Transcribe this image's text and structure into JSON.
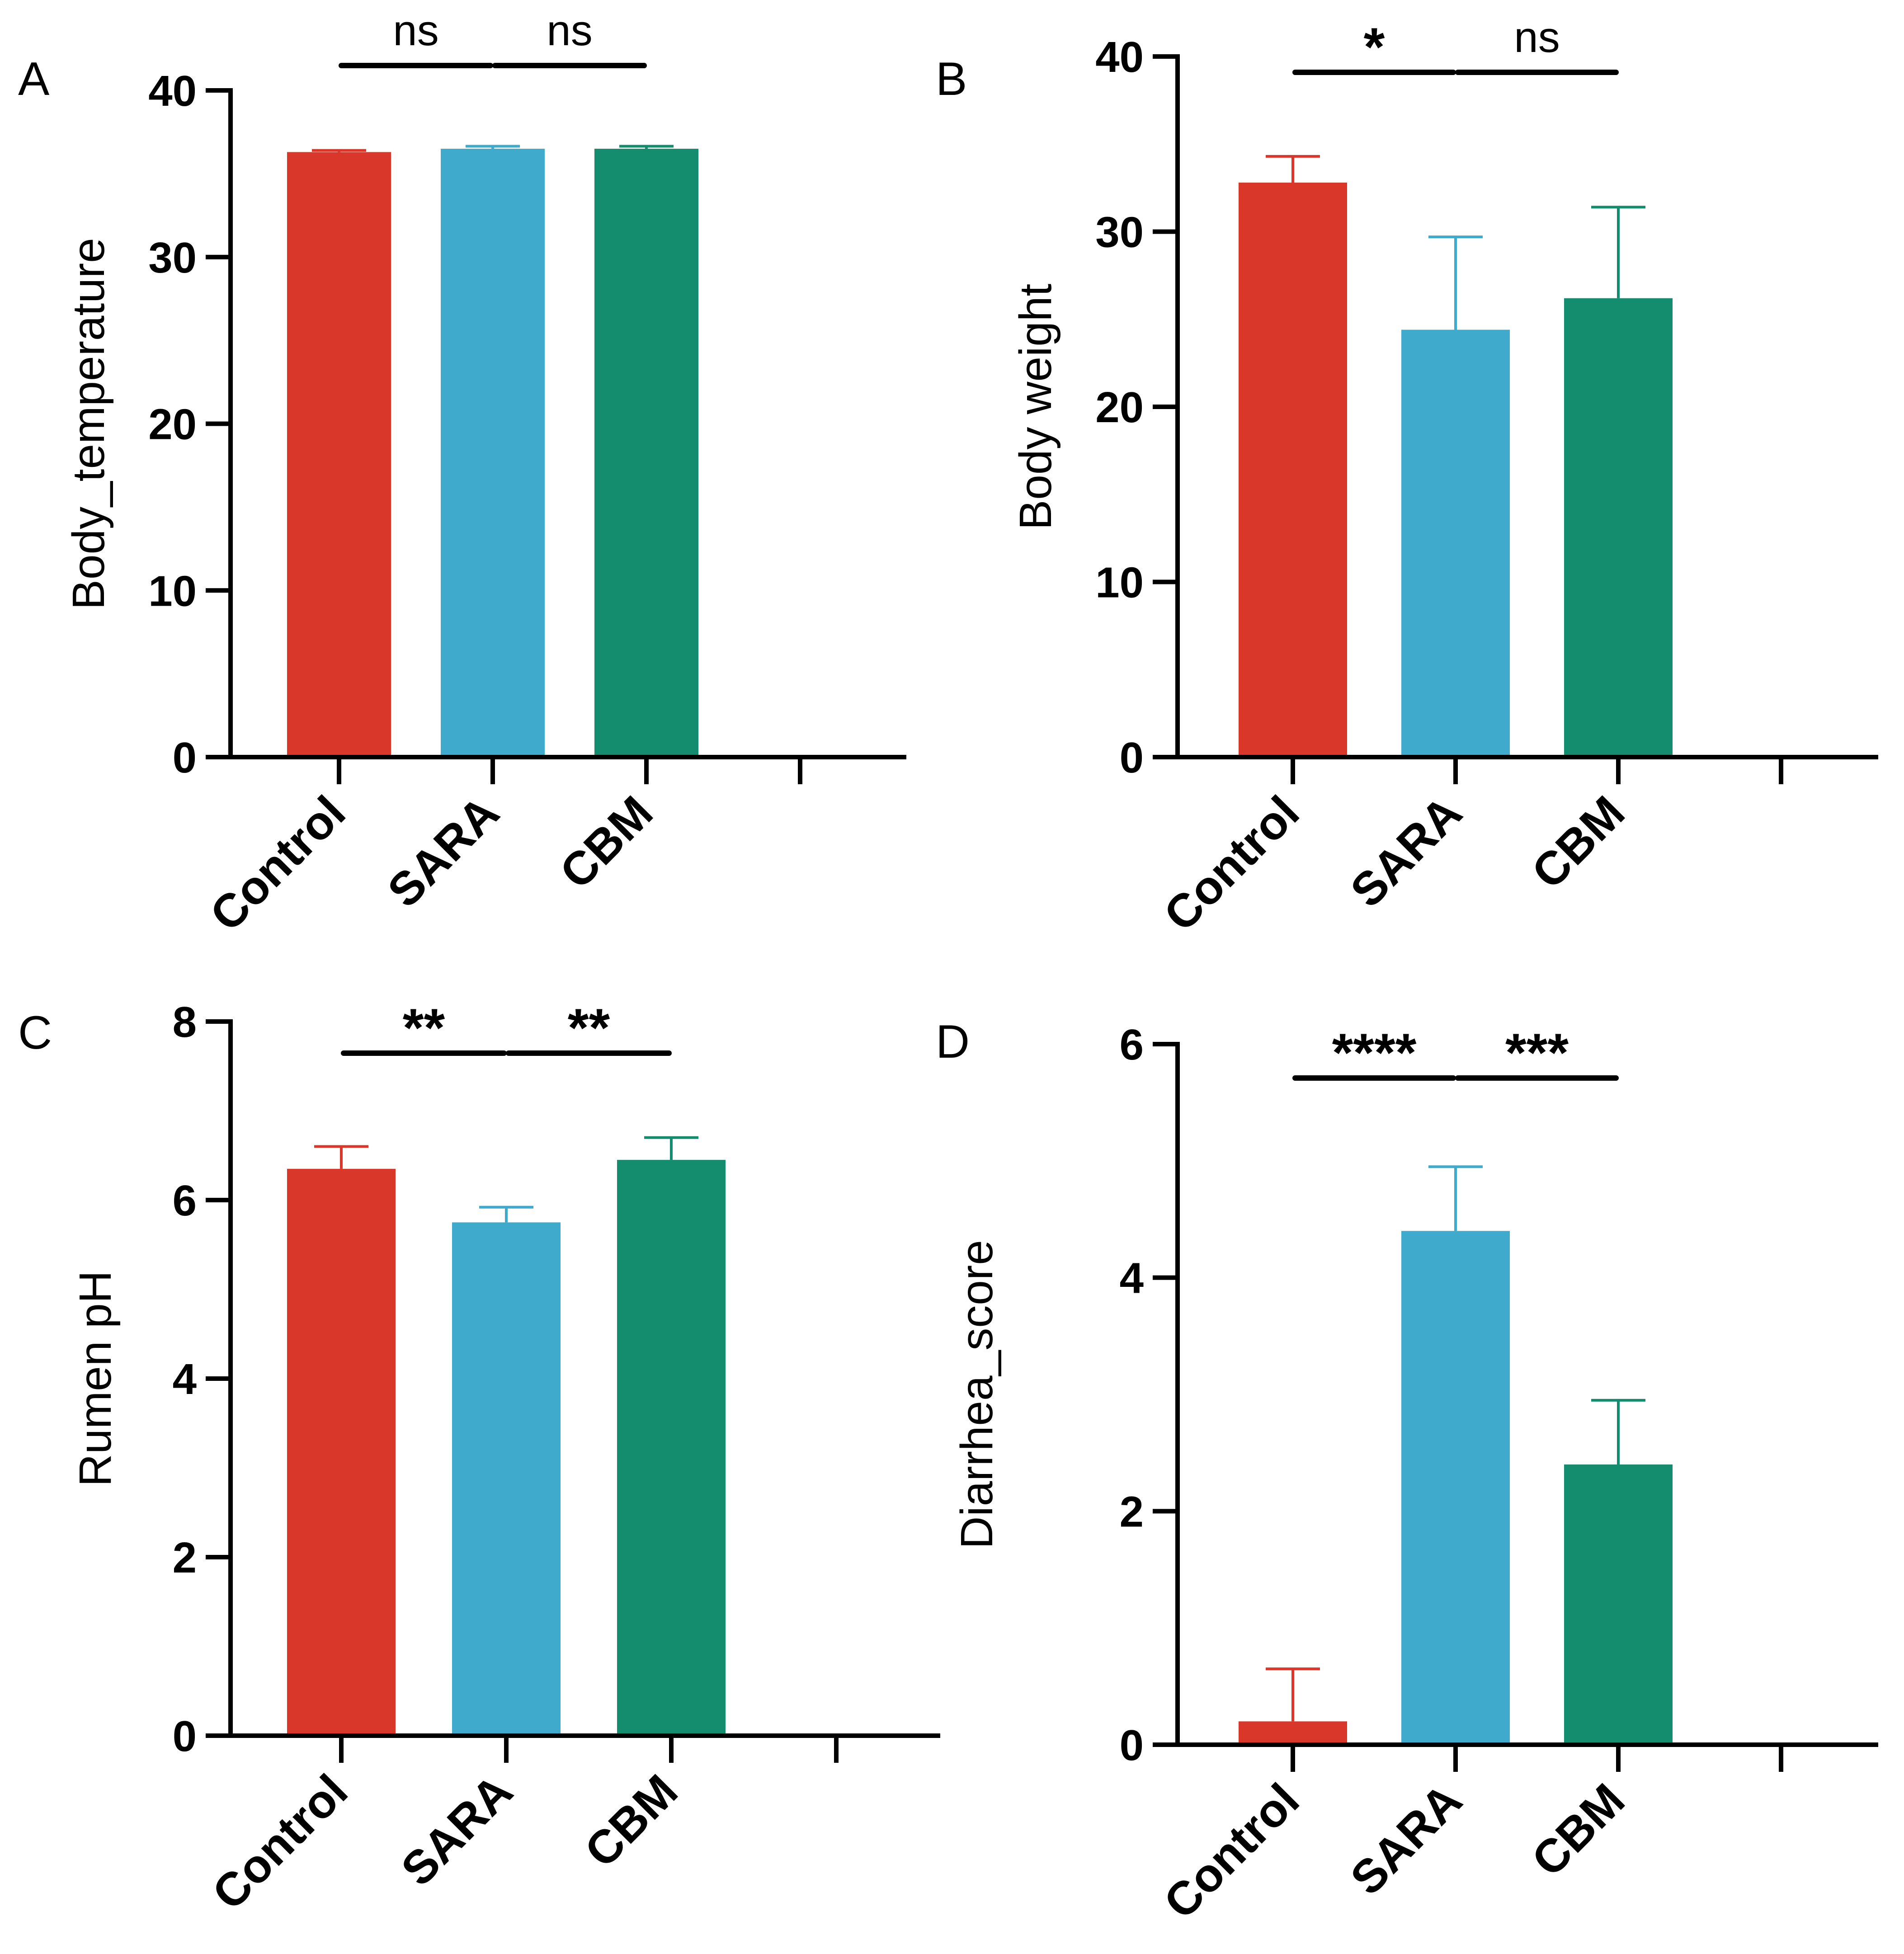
{
  "chart_data": [
    {
      "panel": "A",
      "type": "bar",
      "ylabel": "Body_temperature",
      "xlabel": "",
      "categories": [
        "Control",
        "SARA",
        "CBM"
      ],
      "values": [
        36.3,
        36.5,
        36.5
      ],
      "errors": [
        0.1,
        0.15,
        0.15
      ],
      "colors": [
        "#d9372a",
        "#3faacb",
        "#148d6f"
      ],
      "ylim": [
        0,
        40
      ],
      "yticks": [
        0,
        10,
        20,
        30,
        40
      ],
      "n_slots": 4,
      "significance": [
        {
          "from": 0,
          "to": 1,
          "label": "ns"
        },
        {
          "from": 1,
          "to": 2,
          "label": "ns"
        }
      ]
    },
    {
      "panel": "B",
      "type": "bar",
      "ylabel": "Body weight",
      "xlabel": "",
      "categories": [
        "Control",
        "SARA",
        "CBM"
      ],
      "values": [
        32.8,
        24.4,
        26.2
      ],
      "errors": [
        1.5,
        5.3,
        5.2
      ],
      "colors": [
        "#d9372a",
        "#3faacb",
        "#148d6f"
      ],
      "ylim": [
        0,
        40
      ],
      "yticks": [
        0,
        10,
        20,
        30,
        40
      ],
      "n_slots": 4,
      "significance": [
        {
          "from": 0,
          "to": 1,
          "label": "*"
        },
        {
          "from": 1,
          "to": 2,
          "label": "ns"
        }
      ]
    },
    {
      "panel": "C",
      "type": "bar",
      "ylabel": "Rumen pH",
      "xlabel": "",
      "categories": [
        "Control",
        "SARA",
        "CBM"
      ],
      "values": [
        6.35,
        5.75,
        6.45
      ],
      "errors": [
        0.25,
        0.17,
        0.25
      ],
      "colors": [
        "#d9372a",
        "#3faacb",
        "#148d6f"
      ],
      "ylim": [
        0,
        8
      ],
      "yticks": [
        0,
        2,
        4,
        6,
        8
      ],
      "n_slots": 4,
      "significance": [
        {
          "from": 0,
          "to": 1,
          "label": "**"
        },
        {
          "from": 1,
          "to": 2,
          "label": "**"
        }
      ]
    },
    {
      "panel": "D",
      "type": "bar",
      "ylabel": "Diarrhea_score",
      "xlabel": "",
      "categories": [
        "Control",
        "SARA",
        "CBM"
      ],
      "values": [
        0.2,
        4.4,
        2.4
      ],
      "errors": [
        0.45,
        0.55,
        0.55
      ],
      "colors": [
        "#d9372a",
        "#3faacb",
        "#148d6f"
      ],
      "ylim": [
        0,
        6
      ],
      "yticks": [
        0,
        2,
        4,
        6
      ],
      "n_slots": 4,
      "significance": [
        {
          "from": 0,
          "to": 1,
          "label": "****"
        },
        {
          "from": 1,
          "to": 2,
          "label": "***"
        }
      ]
    }
  ]
}
